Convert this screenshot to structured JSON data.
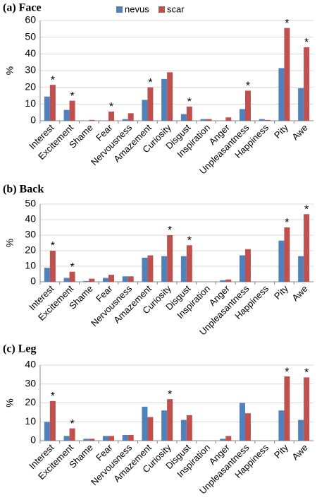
{
  "chart_data": [
    {
      "type": "bar",
      "title": "(a) Face",
      "y_label": "%",
      "categories": [
        "Interest",
        "Excitement",
        "Shame",
        "Fear",
        "Nervousness",
        "Amazement",
        "Curiosity",
        "Disgust",
        "Inspiration",
        "Anger",
        "Unpleasantness",
        "Happiness",
        "Pity",
        "Awe"
      ],
      "series": [
        {
          "name": "nevus",
          "color": "#4f81bd",
          "values": [
            14.5,
            6.5,
            0,
            0,
            1,
            12.5,
            25,
            4,
            1,
            0,
            7,
            1,
            31.5,
            19.5
          ]
        },
        {
          "name": "scar",
          "color": "#c0504d",
          "values": [
            21.5,
            12,
            0.5,
            5.5,
            4.5,
            20,
            29,
            8.5,
            1,
            2,
            18,
            0.5,
            55.5,
            44
          ]
        }
      ],
      "significance": [
        "*",
        "*",
        null,
        "*",
        null,
        "*",
        null,
        "*",
        null,
        null,
        "*",
        null,
        "*",
        "*"
      ],
      "ylim": [
        0,
        60
      ],
      "yticks": [
        0,
        10,
        20,
        30,
        40,
        50,
        60
      ],
      "grid": true
    },
    {
      "type": "bar",
      "title": "(b) Back",
      "y_label": "%",
      "categories": [
        "Interest",
        "Excitement",
        "Shame",
        "Fear",
        "Nervousness",
        "Amazement",
        "Curiosity",
        "Disgust",
        "Inspiration",
        "Anger",
        "Unpleasantness",
        "Happiness",
        "Pity",
        "Awe"
      ],
      "series": [
        {
          "color": "#4f81bd",
          "values": [
            9,
            2.5,
            0.5,
            2.5,
            3.5,
            15.5,
            16.5,
            16.5,
            0,
            1,
            17,
            0,
            26.5,
            16.5
          ]
        },
        {
          "color": "#c0504d",
          "values": [
            20,
            6.5,
            2,
            4.5,
            3.5,
            17,
            30,
            23.5,
            0,
            1.5,
            21,
            0,
            35,
            43.5
          ]
        }
      ],
      "significance": [
        "*",
        "*",
        null,
        null,
        null,
        null,
        "*",
        "*",
        null,
        null,
        null,
        null,
        "*",
        "*"
      ],
      "ylim": [
        0,
        50
      ],
      "yticks": [
        0,
        10,
        20,
        30,
        40,
        50
      ],
      "grid": true
    },
    {
      "type": "bar",
      "title": "(c) Leg",
      "y_label": "%",
      "categories": [
        "Interest",
        "Excitement",
        "Shame",
        "Fear",
        "Nervousness",
        "Amazement",
        "Curiosity",
        "Disgust",
        "Inspiration",
        "Anger",
        "Unpleasantness",
        "Happiness",
        "Pity",
        "Awe"
      ],
      "series": [
        {
          "color": "#4f81bd",
          "values": [
            10,
            2.5,
            1,
            2.5,
            3,
            18,
            16,
            11,
            0,
            1,
            20,
            0,
            16,
            11
          ]
        },
        {
          "color": "#c0504d",
          "values": [
            21,
            6.5,
            1,
            2.5,
            3,
            12.5,
            22,
            13.5,
            0,
            2.5,
            14.5,
            0,
            34,
            33.5
          ]
        }
      ],
      "significance": [
        "*",
        "*",
        null,
        null,
        null,
        null,
        "*",
        null,
        null,
        null,
        null,
        null,
        "*",
        "*"
      ],
      "ylim": [
        0,
        40
      ],
      "yticks": [
        0,
        10,
        20,
        30,
        40
      ],
      "grid": true
    }
  ]
}
